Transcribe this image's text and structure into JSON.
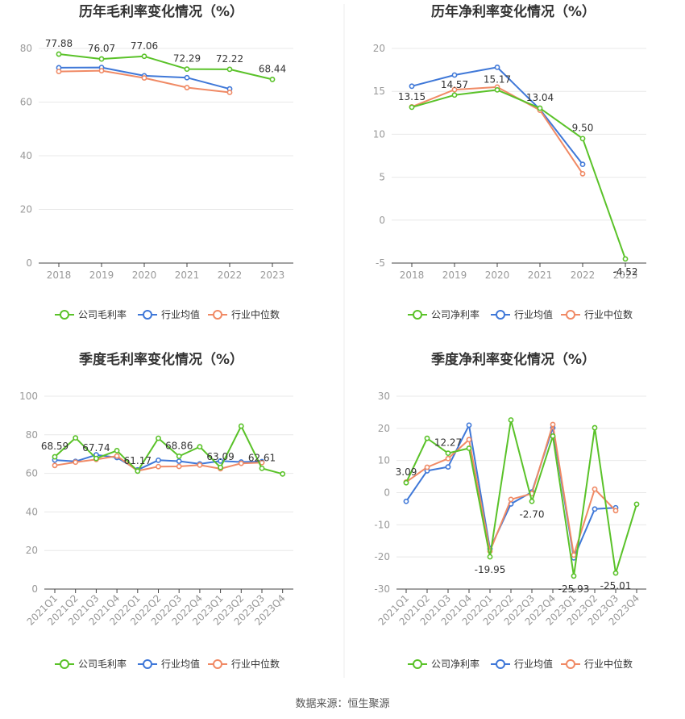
{
  "colors": {
    "company": "#5ac229",
    "industry_avg": "#3f78d8",
    "industry_median": "#f08a65",
    "grid": "#e8e8e8",
    "axis": "#444444",
    "divider": "#ececec"
  },
  "source": "数据来源：恒生聚源",
  "chart_data": [
    {
      "type": "line",
      "title": "历年毛利率变化情况（%）",
      "categories": [
        "2018",
        "2019",
        "2020",
        "2021",
        "2022",
        "2023"
      ],
      "yticks": [
        0,
        20,
        40,
        60,
        80
      ],
      "ylim": [
        0,
        80
      ],
      "rotate_labels": false,
      "grid": true,
      "legend_position": "bottom",
      "series": [
        {
          "name": "公司毛利率",
          "color_key": "company",
          "values": [
            77.88,
            76.07,
            77.06,
            72.29,
            72.22,
            68.44
          ]
        },
        {
          "name": "行业均值",
          "color_key": "industry_avg",
          "values": [
            72.8,
            72.9,
            69.8,
            69.1,
            64.9,
            null
          ]
        },
        {
          "name": "行业中位数",
          "color_key": "industry_median",
          "values": [
            71.4,
            71.7,
            69.0,
            65.4,
            63.6,
            null
          ]
        }
      ],
      "data_labels": [
        {
          "index": 0,
          "text": "77.88"
        },
        {
          "index": 1,
          "text": "76.07"
        },
        {
          "index": 2,
          "text": "77.06"
        },
        {
          "index": 3,
          "text": "72.29"
        },
        {
          "index": 4,
          "text": "72.22"
        },
        {
          "index": 5,
          "text": "68.44"
        }
      ]
    },
    {
      "type": "line",
      "title": "历年净利率变化情况（%）",
      "categories": [
        "2018",
        "2019",
        "2020",
        "2021",
        "2022",
        "2023"
      ],
      "yticks": [
        -5,
        0,
        5,
        10,
        15,
        20
      ],
      "ylim": [
        -5,
        20
      ],
      "rotate_labels": false,
      "grid": true,
      "legend_position": "bottom",
      "series": [
        {
          "name": "公司净利率",
          "color_key": "company",
          "values": [
            13.15,
            14.57,
            15.17,
            13.04,
            9.5,
            -4.52
          ]
        },
        {
          "name": "行业均值",
          "color_key": "industry_avg",
          "values": [
            15.6,
            16.9,
            17.8,
            12.9,
            6.5,
            null
          ]
        },
        {
          "name": "行业中位数",
          "color_key": "industry_median",
          "values": [
            13.2,
            15.2,
            15.5,
            12.8,
            5.4,
            null
          ]
        }
      ],
      "data_labels": [
        {
          "index": 0,
          "text": "13.15"
        },
        {
          "index": 1,
          "text": "14.57"
        },
        {
          "index": 2,
          "text": "15.17"
        },
        {
          "index": 3,
          "text": "13.04"
        },
        {
          "index": 4,
          "text": "9.50"
        },
        {
          "index": 5,
          "text": "-4.52"
        }
      ]
    },
    {
      "type": "line",
      "title": "季度毛利率变化情况（%）",
      "categories": [
        "2021Q1",
        "2021Q2",
        "2021Q3",
        "2021Q4",
        "2022Q1",
        "2022Q2",
        "2022Q3",
        "2022Q4",
        "2023Q1",
        "2023Q2",
        "2023Q3",
        "2023Q4"
      ],
      "yticks": [
        0,
        20,
        40,
        60,
        80,
        100
      ],
      "ylim": [
        0,
        100
      ],
      "rotate_labels": true,
      "grid": true,
      "legend_position": "bottom",
      "series": [
        {
          "name": "公司毛利率",
          "color_key": "company",
          "values": [
            68.59,
            78.4,
            67.74,
            71.8,
            61.17,
            78.2,
            68.86,
            73.8,
            63.09,
            84.5,
            62.61,
            59.7
          ]
        },
        {
          "name": "行业均值",
          "color_key": "industry_avg",
          "values": [
            66.9,
            66.2,
            69.6,
            68.2,
            61.8,
            66.8,
            66.3,
            64.9,
            66.4,
            65.9,
            66.1,
            null
          ]
        },
        {
          "name": "行业中位数",
          "color_key": "industry_median",
          "values": [
            64.1,
            65.8,
            67.2,
            69.0,
            61.3,
            63.5,
            63.6,
            64.3,
            62.4,
            65.2,
            65.6,
            null
          ]
        }
      ],
      "data_labels": [
        {
          "index": 0,
          "text": "68.59"
        },
        {
          "index": 2,
          "text": "67.74"
        },
        {
          "index": 4,
          "text": "61.17"
        },
        {
          "index": 6,
          "text": "68.86"
        },
        {
          "index": 8,
          "text": "63.09"
        },
        {
          "index": 10,
          "text": "62.61"
        }
      ]
    },
    {
      "type": "line",
      "title": "季度净利率变化情况（%）",
      "categories": [
        "2021Q1",
        "2021Q2",
        "2021Q3",
        "2021Q4",
        "2022Q1",
        "2022Q2",
        "2022Q3",
        "2022Q4",
        "2023Q1",
        "2023Q2",
        "2023Q3",
        "2023Q4"
      ],
      "yticks": [
        -30,
        -20,
        -10,
        0,
        10,
        20,
        30
      ],
      "ylim": [
        -30,
        30
      ],
      "rotate_labels": true,
      "grid": true,
      "legend_position": "bottom",
      "series": [
        {
          "name": "公司净利率",
          "color_key": "company",
          "values": [
            3.09,
            16.9,
            12.27,
            13.8,
            -19.95,
            22.6,
            -2.7,
            17.6,
            -25.93,
            20.2,
            -25.01,
            -3.6
          ]
        },
        {
          "name": "行业均值",
          "color_key": "industry_avg",
          "values": [
            -2.7,
            6.8,
            8.0,
            21.0,
            -17.5,
            -3.5,
            0.2,
            20.2,
            -20.3,
            -5.1,
            -4.7,
            null
          ]
        },
        {
          "name": "行业中位数",
          "color_key": "industry_median",
          "values": [
            3.3,
            7.9,
            10.6,
            16.5,
            -18.2,
            -2.1,
            -0.3,
            21.2,
            -19.4,
            1.1,
            -5.6,
            null
          ]
        }
      ],
      "data_labels": [
        {
          "index": 0,
          "text": "3.09"
        },
        {
          "index": 2,
          "text": "12.27"
        },
        {
          "index": 4,
          "text": "-19.95"
        },
        {
          "index": 6,
          "text": "-2.70"
        },
        {
          "index": 8,
          "text": "-25.93"
        },
        {
          "index": 10,
          "text": "-25.01"
        }
      ]
    }
  ]
}
